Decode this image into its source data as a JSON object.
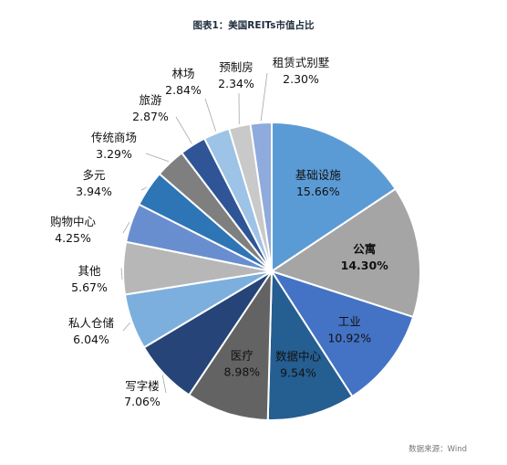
{
  "chart_data": {
    "type": "pie",
    "title": "图表1：美国REITs市值占比",
    "source": "数据来源：Wind",
    "slices": [
      {
        "label": "基础设施",
        "value": 15.66,
        "value_label": "15.66%",
        "color": "#5b9bd5",
        "text_color": "#111111",
        "bold": false
      },
      {
        "label": "公寓",
        "value": 14.3,
        "value_label": "14.30%",
        "color": "#a5a5a5",
        "text_color": "#111111",
        "bold": true
      },
      {
        "label": "工业",
        "value": 10.92,
        "value_label": "10.92%",
        "color": "#4472c4",
        "text_color": "#111111",
        "bold": false
      },
      {
        "label": "数据中心",
        "value": 9.54,
        "value_label": "9.54%",
        "color": "#255e91",
        "text_color": "#111111",
        "bold": false
      },
      {
        "label": "医疗",
        "value": 8.98,
        "value_label": "8.98%",
        "color": "#636363",
        "text_color": "#111111",
        "bold": false
      },
      {
        "label": "写字楼",
        "value": 7.06,
        "value_label": "7.06%",
        "color": "#264478",
        "text_color": "#111111",
        "bold": false
      },
      {
        "label": "私人仓储",
        "value": 6.04,
        "value_label": "6.04%",
        "color": "#7cafdd",
        "text_color": "#111111",
        "bold": false
      },
      {
        "label": "其他",
        "value": 5.67,
        "value_label": "5.67%",
        "color": "#b7b7b7",
        "text_color": "#111111",
        "bold": false
      },
      {
        "label": "购物中心",
        "value": 4.25,
        "value_label": "4.25%",
        "color": "#698ed0",
        "text_color": "#111111",
        "bold": false
      },
      {
        "label": "多元",
        "value": 3.94,
        "value_label": "3.94%",
        "color": "#2e75b6",
        "text_color": "#111111",
        "bold": false
      },
      {
        "label": "传统商场",
        "value": 3.29,
        "value_label": "3.29%",
        "color": "#7f7f7f",
        "text_color": "#111111",
        "bold": false
      },
      {
        "label": "旅游",
        "value": 2.87,
        "value_label": "2.87%",
        "color": "#2f5597",
        "text_color": "#111111",
        "bold": false
      },
      {
        "label": "林场",
        "value": 2.84,
        "value_label": "2.84%",
        "color": "#9dc3e6",
        "text_color": "#111111",
        "bold": false
      },
      {
        "label": "预制房",
        "value": 2.34,
        "value_label": "2.34%",
        "color": "#c9c9c9",
        "text_color": "#111111",
        "bold": false
      },
      {
        "label": "租赁式别墅",
        "value": 2.3,
        "value_label": "2.30%",
        "color": "#8faadc",
        "text_color": "#111111",
        "bold": false
      }
    ],
    "start_angle_deg": 0,
    "direction": "clockwise",
    "legend": "none"
  }
}
